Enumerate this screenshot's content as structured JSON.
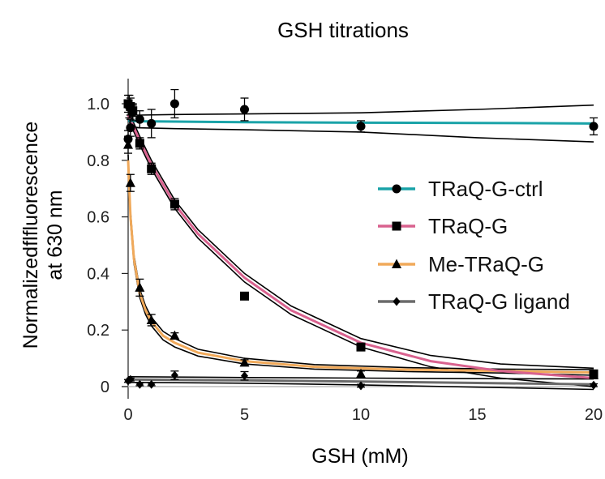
{
  "chart_data": {
    "type": "scatter",
    "title": "GSH titrations",
    "xlabel": "GSH (mM)",
    "ylabel_lines": [
      "Normalizedflfluorescence",
      "at 630 nm"
    ],
    "xlim": [
      0,
      20
    ],
    "ylim": [
      0,
      1.1
    ],
    "xticks": [
      0,
      5,
      10,
      15,
      20
    ],
    "xtick_labels": [
      "0",
      "5",
      "10",
      "15",
      "20"
    ],
    "yticks": [
      0,
      0.2,
      0.4,
      0.6,
      0.8,
      1.0
    ],
    "ytick_labels": [
      "0",
      "0.2",
      "0.4",
      "0.6",
      "0.8",
      "1.0"
    ],
    "legend_position": "right",
    "series": [
      {
        "name": "TRaQ-G-ctrl",
        "color": "#1aa3a8",
        "marker": "circle",
        "x": [
          0,
          0.05,
          0.1,
          0.2,
          0.5,
          1,
          2,
          5,
          10,
          20
        ],
        "y": [
          0.875,
          0.99,
          0.915,
          0.97,
          0.945,
          0.93,
          1.0,
          0.98,
          0.92,
          0.92
        ],
        "err": [
          0.03,
          0.04,
          0.03,
          0.03,
          0.03,
          0.05,
          0.05,
          0.04,
          0.02,
          0.03
        ],
        "fit_x": [
          0,
          0.5,
          2,
          5,
          10,
          15,
          20
        ],
        "fit_y": [
          0.94,
          0.938,
          0.937,
          0.935,
          0.933,
          0.932,
          0.93
        ],
        "ci_upper": [
          0.96,
          0.96,
          0.962,
          0.964,
          0.968,
          0.98,
          0.995
        ],
        "ci_lower": [
          0.92,
          0.915,
          0.912,
          0.908,
          0.9,
          0.88,
          0.865
        ]
      },
      {
        "name": "TRaQ-G",
        "color": "#d9628f",
        "marker": "square",
        "x": [
          0,
          0.1,
          0.2,
          0.5,
          1,
          2,
          5,
          10,
          20
        ],
        "y": [
          1.0,
          0.99,
          0.975,
          0.86,
          0.77,
          0.645,
          0.32,
          0.14,
          0.045
        ],
        "err": [
          0.03,
          0.03,
          0.02,
          0.02,
          0.02,
          0.02,
          0.01,
          0.01,
          0.01
        ],
        "fit_x": [
          0,
          0.5,
          1,
          2,
          3,
          5,
          7,
          10,
          13,
          16,
          20
        ],
        "fit_y": [
          0.96,
          0.87,
          0.785,
          0.645,
          0.54,
          0.385,
          0.27,
          0.155,
          0.09,
          0.055,
          0.03
        ],
        "ci_upper": [
          0.975,
          0.885,
          0.8,
          0.66,
          0.555,
          0.4,
          0.285,
          0.17,
          0.11,
          0.08,
          0.065
        ],
        "ci_lower": [
          0.945,
          0.855,
          0.77,
          0.63,
          0.525,
          0.37,
          0.255,
          0.14,
          0.07,
          0.03,
          0.0
        ]
      },
      {
        "name": "Me-TRaQ-G",
        "color": "#f0a95a",
        "marker": "triangle",
        "x": [
          0,
          0.1,
          0.5,
          1,
          2,
          5,
          10,
          20
        ],
        "y": [
          0.855,
          0.72,
          0.35,
          0.235,
          0.18,
          0.085,
          0.045,
          0.04
        ],
        "err": [
          0.03,
          0.03,
          0.03,
          0.02,
          0.01,
          0.01,
          0.01,
          0.01
        ],
        "fit_x": [
          0,
          0.1,
          0.25,
          0.5,
          0.75,
          1,
          1.5,
          2,
          3,
          5,
          8,
          12,
          16,
          20
        ],
        "fit_y": [
          0.8,
          0.6,
          0.45,
          0.33,
          0.27,
          0.23,
          0.18,
          0.155,
          0.12,
          0.09,
          0.07,
          0.06,
          0.055,
          0.05
        ],
        "ci_upper": [
          0.82,
          0.62,
          0.465,
          0.345,
          0.285,
          0.245,
          0.195,
          0.17,
          0.132,
          0.1,
          0.078,
          0.067,
          0.062,
          0.06
        ],
        "ci_lower": [
          0.78,
          0.58,
          0.435,
          0.315,
          0.255,
          0.215,
          0.165,
          0.14,
          0.108,
          0.08,
          0.062,
          0.053,
          0.048,
          0.04
        ]
      },
      {
        "name": "TRaQ-G ligand",
        "color": "#6b6b6b",
        "marker": "diamond",
        "x": [
          0,
          0.1,
          0.5,
          1,
          2,
          5,
          10,
          20
        ],
        "y": [
          0.02,
          0.025,
          0.008,
          0.008,
          0.04,
          0.038,
          0.003,
          0.005
        ],
        "err": [
          0.005,
          0.005,
          0.005,
          0.005,
          0.015,
          0.015,
          0.005,
          0.005
        ],
        "fit_x": [
          0,
          5,
          10,
          15,
          20
        ],
        "fit_y": [
          0.025,
          0.022,
          0.018,
          0.013,
          0.008
        ],
        "ci_upper": [
          0.035,
          0.032,
          0.03,
          0.028,
          0.027
        ],
        "ci_lower": [
          0.015,
          0.012,
          0.006,
          -0.002,
          -0.01
        ]
      }
    ]
  }
}
